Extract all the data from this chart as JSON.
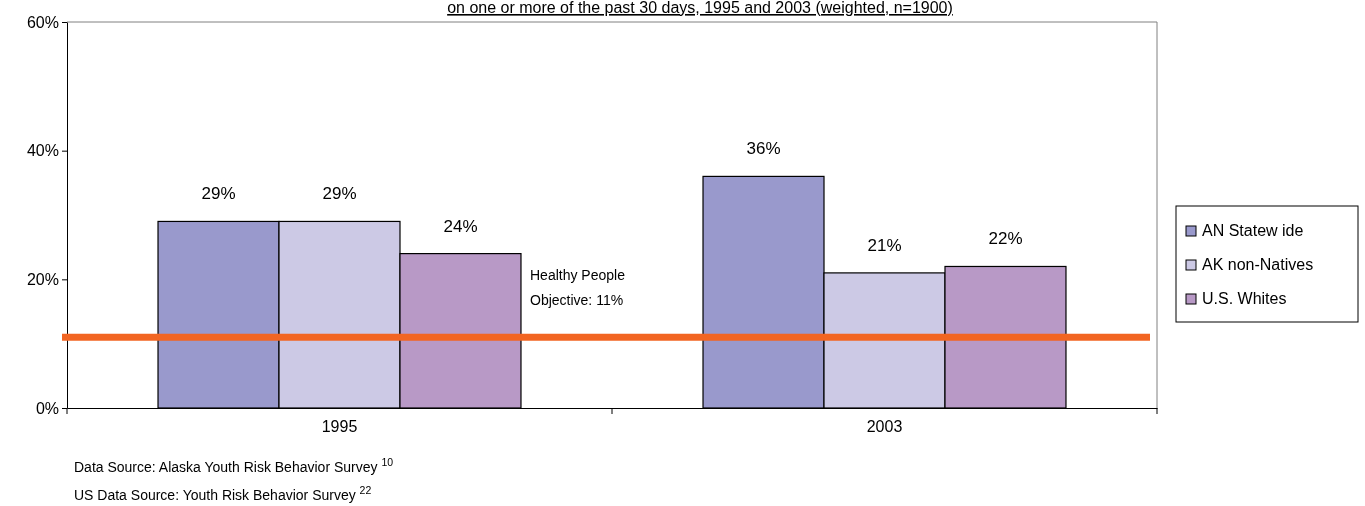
{
  "chart_data": {
    "type": "bar",
    "title": "on one or more of the past 30 days, 1995 and 2003 (weighted, n=1900)",
    "categories": [
      "1995",
      "2003"
    ],
    "series": [
      {
        "name": "AN Statew ide",
        "color": "#9999cc",
        "values": [
          29,
          36
        ],
        "value_labels": [
          "29%",
          "36%"
        ]
      },
      {
        "name": "AK non-Natives",
        "color": "#ccc9e5",
        "values": [
          29,
          21
        ],
        "value_labels": [
          "29%",
          "21%"
        ]
      },
      {
        "name": "U.S. Whites",
        "color": "#b899c6",
        "values": [
          24,
          22
        ],
        "value_labels": [
          "24%",
          "22%"
        ]
      }
    ],
    "ylim": [
      0,
      60
    ],
    "yticks": [
      {
        "value": 0,
        "label": "0%"
      },
      {
        "value": 20,
        "label": "20%"
      },
      {
        "value": 40,
        "label": "40%"
      },
      {
        "value": 60,
        "label": "60%"
      }
    ],
    "legend": "right",
    "grid": false,
    "ref_lines": [
      {
        "axis": "y",
        "value": 11,
        "label": "Healthy People Objective: 11%",
        "color": "#f26522"
      }
    ],
    "annotations": [
      "Data Source: Alaska  Youth Risk Behavior Survey $^{10}$",
      "US Data Source: Youth Risk Behavior Survey $^{22}$"
    ]
  }
}
